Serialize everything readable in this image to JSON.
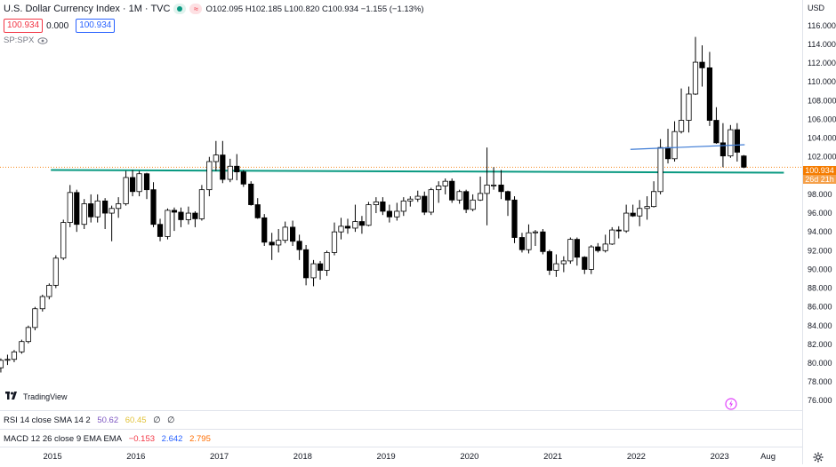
{
  "header": {
    "title": "U.S. Dollar Currency Index · 1M · TVC",
    "ohlc_text": "O102.095 H102.185 L100.820 C100.934 −1.155 (−1.13%)",
    "currency": "USD"
  },
  "inputs": {
    "box_left": "100.934",
    "box_mid": "0.000",
    "box_right": "100.934"
  },
  "compare_symbol": "SP:SPX",
  "price_tag": {
    "value": "100.934",
    "countdown": "26d 21h"
  },
  "watermark": "TradingView",
  "indicators": {
    "rsi": {
      "label": "RSI 14 close SMA 14 2",
      "v1": "50.62",
      "v2": "60.45",
      "v3": "∅",
      "v4": "∅"
    },
    "macd": {
      "label": "MACD 12 26 close 9 EMA EMA",
      "v1": "−0.153",
      "v2": "2.642",
      "v3": "2.795"
    }
  },
  "colors": {
    "up": "#ffffff",
    "down": "#000000",
    "support_line": "#089981",
    "trend_line": "#3d7bd5",
    "accent": "#f57c00",
    "macd_red": "#f23645",
    "macd_blue": "#2962ff",
    "macd_orange": "#ff6d00",
    "rsi_purple": "#7e57c2",
    "rsi_yellow": "#e2c33b"
  },
  "icons": [
    "eye-icon",
    "tradingview-logo-icon",
    "lightning-icon",
    "settings-gear-icon"
  ],
  "chart_data": {
    "type": "candlestick",
    "title": "U.S. Dollar Currency Index · 1M · TVC",
    "y_ticks": [
      76,
      78,
      80,
      82,
      84,
      86,
      88,
      90,
      92,
      94,
      96,
      98,
      100,
      102,
      104,
      106,
      108,
      110,
      112,
      114,
      116
    ],
    "y_tick_labels": [
      "76.000",
      "78.000",
      "80.000",
      "82.000",
      "84.000",
      "86.000",
      "88.000",
      "90.000",
      "92.000",
      "94.000",
      "96.000",
      "98.000",
      "100.000",
      "102.000",
      "104.000",
      "106.000",
      "108.000",
      "110.000",
      "112.000",
      "114.000",
      "116.000"
    ],
    "ylim": [
      74.6,
      117.6
    ],
    "x_ticks": [
      2015,
      2016,
      2017,
      2018,
      2019,
      2020,
      2021,
      2022,
      2023,
      2023.58
    ],
    "x_tick_labels": [
      "2015",
      "2016",
      "2017",
      "2018",
      "2019",
      "2020",
      "2021",
      "2022",
      "2023",
      "Aug"
    ],
    "xlim": [
      2014.37,
      2023.99
    ],
    "support_line": {
      "y": 100.5
    },
    "trend_line": {
      "x1": 2021.93,
      "y1": 102.8,
      "x2": 2023.3,
      "y2": 103.3
    },
    "candles": [
      [
        2014.38,
        79.5,
        80.5,
        79.0,
        80.3
      ],
      [
        2014.46,
        80.3,
        80.9,
        79.8,
        80.4
      ],
      [
        2014.54,
        80.4,
        81.4,
        80.1,
        81.2
      ],
      [
        2014.63,
        81.2,
        82.5,
        81.0,
        82.3
      ],
      [
        2014.71,
        82.3,
        84.0,
        82.1,
        83.8
      ],
      [
        2014.79,
        83.8,
        86.0,
        83.5,
        85.8
      ],
      [
        2014.88,
        85.8,
        87.3,
        85.5,
        87.1
      ],
      [
        2014.96,
        87.1,
        88.5,
        86.8,
        88.3
      ],
      [
        2015.04,
        88.3,
        91.5,
        88.0,
        91.2
      ],
      [
        2015.13,
        91.2,
        95.3,
        91.0,
        95.0
      ],
      [
        2015.21,
        95.0,
        99.0,
        94.5,
        98.2
      ],
      [
        2015.29,
        98.2,
        98.5,
        94.0,
        94.8
      ],
      [
        2015.38,
        94.8,
        97.5,
        94.3,
        97.0
      ],
      [
        2015.46,
        97.0,
        98.0,
        95.0,
        95.6
      ],
      [
        2015.54,
        95.6,
        98.0,
        95.0,
        97.3
      ],
      [
        2015.63,
        97.3,
        97.6,
        94.3,
        96.0
      ],
      [
        2015.71,
        96.0,
        96.8,
        93.0,
        96.5
      ],
      [
        2015.79,
        96.5,
        97.7,
        95.5,
        97.0
      ],
      [
        2015.88,
        97.0,
        100.5,
        96.8,
        99.8
      ],
      [
        2015.96,
        99.8,
        100.6,
        97.8,
        98.3
      ],
      [
        2016.04,
        98.3,
        100.5,
        97.8,
        100.2
      ],
      [
        2016.13,
        100.2,
        100.3,
        97.5,
        98.5
      ],
      [
        2016.21,
        98.5,
        99.3,
        94.5,
        94.8
      ],
      [
        2016.29,
        94.8,
        95.4,
        93.0,
        93.5
      ],
      [
        2016.38,
        93.5,
        96.5,
        93.2,
        96.3
      ],
      [
        2016.46,
        96.3,
        96.6,
        94.1,
        96.1
      ],
      [
        2016.54,
        96.1,
        96.6,
        94.5,
        95.3
      ],
      [
        2016.63,
        95.3,
        96.7,
        94.8,
        96.0
      ],
      [
        2016.71,
        96.0,
        96.2,
        94.5,
        95.4
      ],
      [
        2016.79,
        95.4,
        99.0,
        95.2,
        98.5
      ],
      [
        2016.88,
        98.5,
        102.0,
        97.8,
        101.5
      ],
      [
        2016.96,
        101.5,
        103.7,
        100.5,
        102.2
      ],
      [
        2017.04,
        102.2,
        103.7,
        99.2,
        99.6
      ],
      [
        2017.13,
        99.6,
        101.8,
        99.3,
        101.0
      ],
      [
        2017.21,
        101.0,
        102.3,
        99.5,
        100.4
      ],
      [
        2017.29,
        100.4,
        100.6,
        98.8,
        99.1
      ],
      [
        2017.38,
        99.1,
        99.4,
        96.8,
        96.9
      ],
      [
        2017.46,
        96.9,
        97.6,
        95.4,
        95.5
      ],
      [
        2017.54,
        95.5,
        95.9,
        92.5,
        92.9
      ],
      [
        2017.63,
        92.9,
        93.9,
        91.0,
        92.6
      ],
      [
        2017.71,
        92.6,
        94.3,
        91.8,
        93.1
      ],
      [
        2017.79,
        93.1,
        95.1,
        92.8,
        94.5
      ],
      [
        2017.88,
        94.5,
        95.2,
        92.5,
        93.0
      ],
      [
        2017.96,
        93.0,
        93.7,
        91.0,
        92.1
      ],
      [
        2018.04,
        92.1,
        92.6,
        88.3,
        89.1
      ],
      [
        2018.13,
        89.1,
        91.0,
        88.2,
        90.6
      ],
      [
        2018.21,
        90.6,
        90.9,
        88.9,
        89.9
      ],
      [
        2018.29,
        89.9,
        92.0,
        89.3,
        91.8
      ],
      [
        2018.38,
        91.8,
        95.0,
        91.5,
        94.0
      ],
      [
        2018.46,
        94.0,
        95.5,
        93.2,
        94.6
      ],
      [
        2018.54,
        94.6,
        95.4,
        93.8,
        94.4
      ],
      [
        2018.63,
        94.4,
        96.9,
        94.0,
        95.1
      ],
      [
        2018.71,
        95.1,
        95.7,
        93.8,
        94.7
      ],
      [
        2018.79,
        94.7,
        97.2,
        94.6,
        96.9
      ],
      [
        2018.88,
        96.9,
        97.7,
        96.0,
        97.2
      ],
      [
        2018.96,
        97.2,
        97.7,
        95.8,
        96.2
      ],
      [
        2019.04,
        96.2,
        96.9,
        95.0,
        95.6
      ],
      [
        2019.13,
        95.6,
        97.1,
        95.2,
        96.2
      ],
      [
        2019.21,
        96.2,
        97.7,
        95.7,
        97.3
      ],
      [
        2019.29,
        97.3,
        97.8,
        96.7,
        97.5
      ],
      [
        2019.38,
        97.5,
        98.4,
        97.2,
        97.8
      ],
      [
        2019.46,
        97.8,
        98.3,
        95.8,
        96.1
      ],
      [
        2019.54,
        96.1,
        98.7,
        95.8,
        98.5
      ],
      [
        2019.63,
        98.5,
        99.4,
        97.1,
        98.9
      ],
      [
        2019.71,
        98.9,
        99.7,
        98.0,
        99.4
      ],
      [
        2019.79,
        99.4,
        99.7,
        97.1,
        97.4
      ],
      [
        2019.88,
        97.4,
        98.5,
        97.0,
        98.3
      ],
      [
        2019.96,
        98.3,
        98.5,
        96.0,
        96.4
      ],
      [
        2020.04,
        96.4,
        98.0,
        96.2,
        97.4
      ],
      [
        2020.13,
        97.4,
        99.9,
        97.3,
        98.1
      ],
      [
        2020.21,
        98.1,
        103.0,
        94.7,
        99.0
      ],
      [
        2020.29,
        99.0,
        100.9,
        98.5,
        99.0
      ],
      [
        2020.38,
        99.0,
        100.6,
        97.5,
        98.3
      ],
      [
        2020.46,
        98.3,
        98.4,
        95.7,
        97.4
      ],
      [
        2020.54,
        97.4,
        97.8,
        92.8,
        93.4
      ],
      [
        2020.63,
        93.4,
        93.9,
        91.8,
        92.1
      ],
      [
        2020.71,
        92.1,
        94.8,
        91.7,
        93.9
      ],
      [
        2020.79,
        93.9,
        94.2,
        92.5,
        94.0
      ],
      [
        2020.88,
        94.0,
        94.3,
        91.6,
        91.9
      ],
      [
        2020.96,
        91.9,
        92.1,
        89.4,
        89.9
      ],
      [
        2021.04,
        89.9,
        91.6,
        89.2,
        90.6
      ],
      [
        2021.13,
        90.6,
        91.4,
        89.7,
        90.9
      ],
      [
        2021.21,
        90.9,
        93.4,
        90.6,
        93.2
      ],
      [
        2021.29,
        93.2,
        93.4,
        90.4,
        91.3
      ],
      [
        2021.38,
        91.3,
        91.4,
        89.5,
        90.0
      ],
      [
        2021.46,
        90.0,
        92.6,
        89.5,
        92.4
      ],
      [
        2021.54,
        92.4,
        92.8,
        91.8,
        92.0
      ],
      [
        2021.63,
        92.0,
        93.7,
        91.8,
        92.7
      ],
      [
        2021.71,
        92.7,
        94.5,
        92.6,
        94.2
      ],
      [
        2021.79,
        94.2,
        94.6,
        93.3,
        94.1
      ],
      [
        2021.88,
        94.1,
        96.9,
        93.9,
        96.0
      ],
      [
        2021.96,
        96.0,
        96.9,
        95.6,
        95.7
      ],
      [
        2022.04,
        95.7,
        97.4,
        94.6,
        96.5
      ],
      [
        2022.13,
        96.5,
        97.8,
        95.3,
        96.7
      ],
      [
        2022.21,
        96.7,
        99.4,
        96.6,
        98.3
      ],
      [
        2022.29,
        98.3,
        103.9,
        98.0,
        103.0
      ],
      [
        2022.38,
        103.0,
        105.0,
        101.3,
        101.8
      ],
      [
        2022.46,
        101.8,
        105.8,
        101.5,
        104.7
      ],
      [
        2022.54,
        104.7,
        109.3,
        104.5,
        105.9
      ],
      [
        2022.63,
        105.9,
        109.5,
        104.6,
        108.7
      ],
      [
        2022.71,
        108.7,
        114.8,
        108.6,
        112.1
      ],
      [
        2022.79,
        112.1,
        113.9,
        109.5,
        111.5
      ],
      [
        2022.88,
        111.5,
        113.2,
        105.3,
        105.9
      ],
      [
        2022.96,
        105.9,
        107.3,
        103.4,
        103.5
      ],
      [
        2023.04,
        103.5,
        105.6,
        100.9,
        102.1
      ],
      [
        2023.13,
        102.1,
        105.4,
        101.9,
        104.9
      ],
      [
        2023.21,
        104.9,
        105.6,
        101.5,
        102.5
      ],
      [
        2023.29,
        102.1,
        102.2,
        100.8,
        100.9
      ]
    ]
  }
}
